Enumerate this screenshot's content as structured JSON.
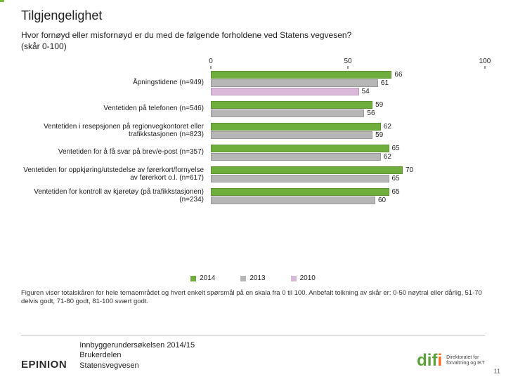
{
  "title": "Tilgjengelighet",
  "subtitle": "Hvor fornøyd eller misfornøyd er du med de følgende forholdene ved Statens vegvesen? (skår 0-100)",
  "chart": {
    "type": "bar",
    "xlim": [
      0,
      100
    ],
    "ticks": [
      0,
      50,
      100
    ],
    "tick_fontsize": 10,
    "label_fontsize": 10,
    "value_fontsize": 10,
    "background": "#ffffff",
    "series": [
      {
        "year": "2014",
        "color": "#6fad3d"
      },
      {
        "year": "2013",
        "color": "#b6b6b6"
      },
      {
        "year": "2010",
        "color": "#d9b8da"
      }
    ],
    "groups": [
      {
        "label": "Åpningstidene (n=949)",
        "values": [
          66,
          61,
          54
        ]
      },
      {
        "label": "Ventetiden på telefonen (n=546)",
        "values": [
          59,
          56,
          null
        ]
      },
      {
        "label": "Ventetiden i resepsjonen på regionvegkontoret eller trafikkstasjonen (n=823)",
        "values": [
          62,
          59,
          null
        ]
      },
      {
        "label": "Ventetiden for å få svar på brev/e-post (n=357)",
        "values": [
          65,
          62,
          null
        ]
      },
      {
        "label": "Ventetiden for oppkjøring/utstedelse av førerkort/fornyelse av førerkort o.l. (n=617)",
        "values": [
          70,
          65,
          null
        ]
      },
      {
        "label": "Ventetiden for kontroll av kjøretøy (på trafikkstasjonen) (n=234)",
        "values": [
          65,
          60,
          null
        ]
      }
    ]
  },
  "legend": [
    "2014",
    "2013",
    "2010"
  ],
  "caption": "Figuren viser totalskåren for hele temaområdet og hvert enkelt spørsmål på en skala fra 0 til 100. Anbefalt tolkning av skår er: 0-50 nøytral eller dårlig, 51-70 delvis godt, 71-80 godt, 81-100 svært godt.",
  "footer": {
    "brand": "EPINION",
    "source_lines": [
      "Innbyggerundersøkelsen 2014/15",
      "Brukerdelen",
      "Statensvegvesen"
    ],
    "difi_sub": "Direktoratet for\nforvaltning og IKT",
    "page": "11"
  },
  "colors": {
    "text": "#222222",
    "rule": "#bfbfbf",
    "green": "#6fad3d",
    "grey": "#b6b6b6",
    "lilac": "#d9b8da"
  }
}
